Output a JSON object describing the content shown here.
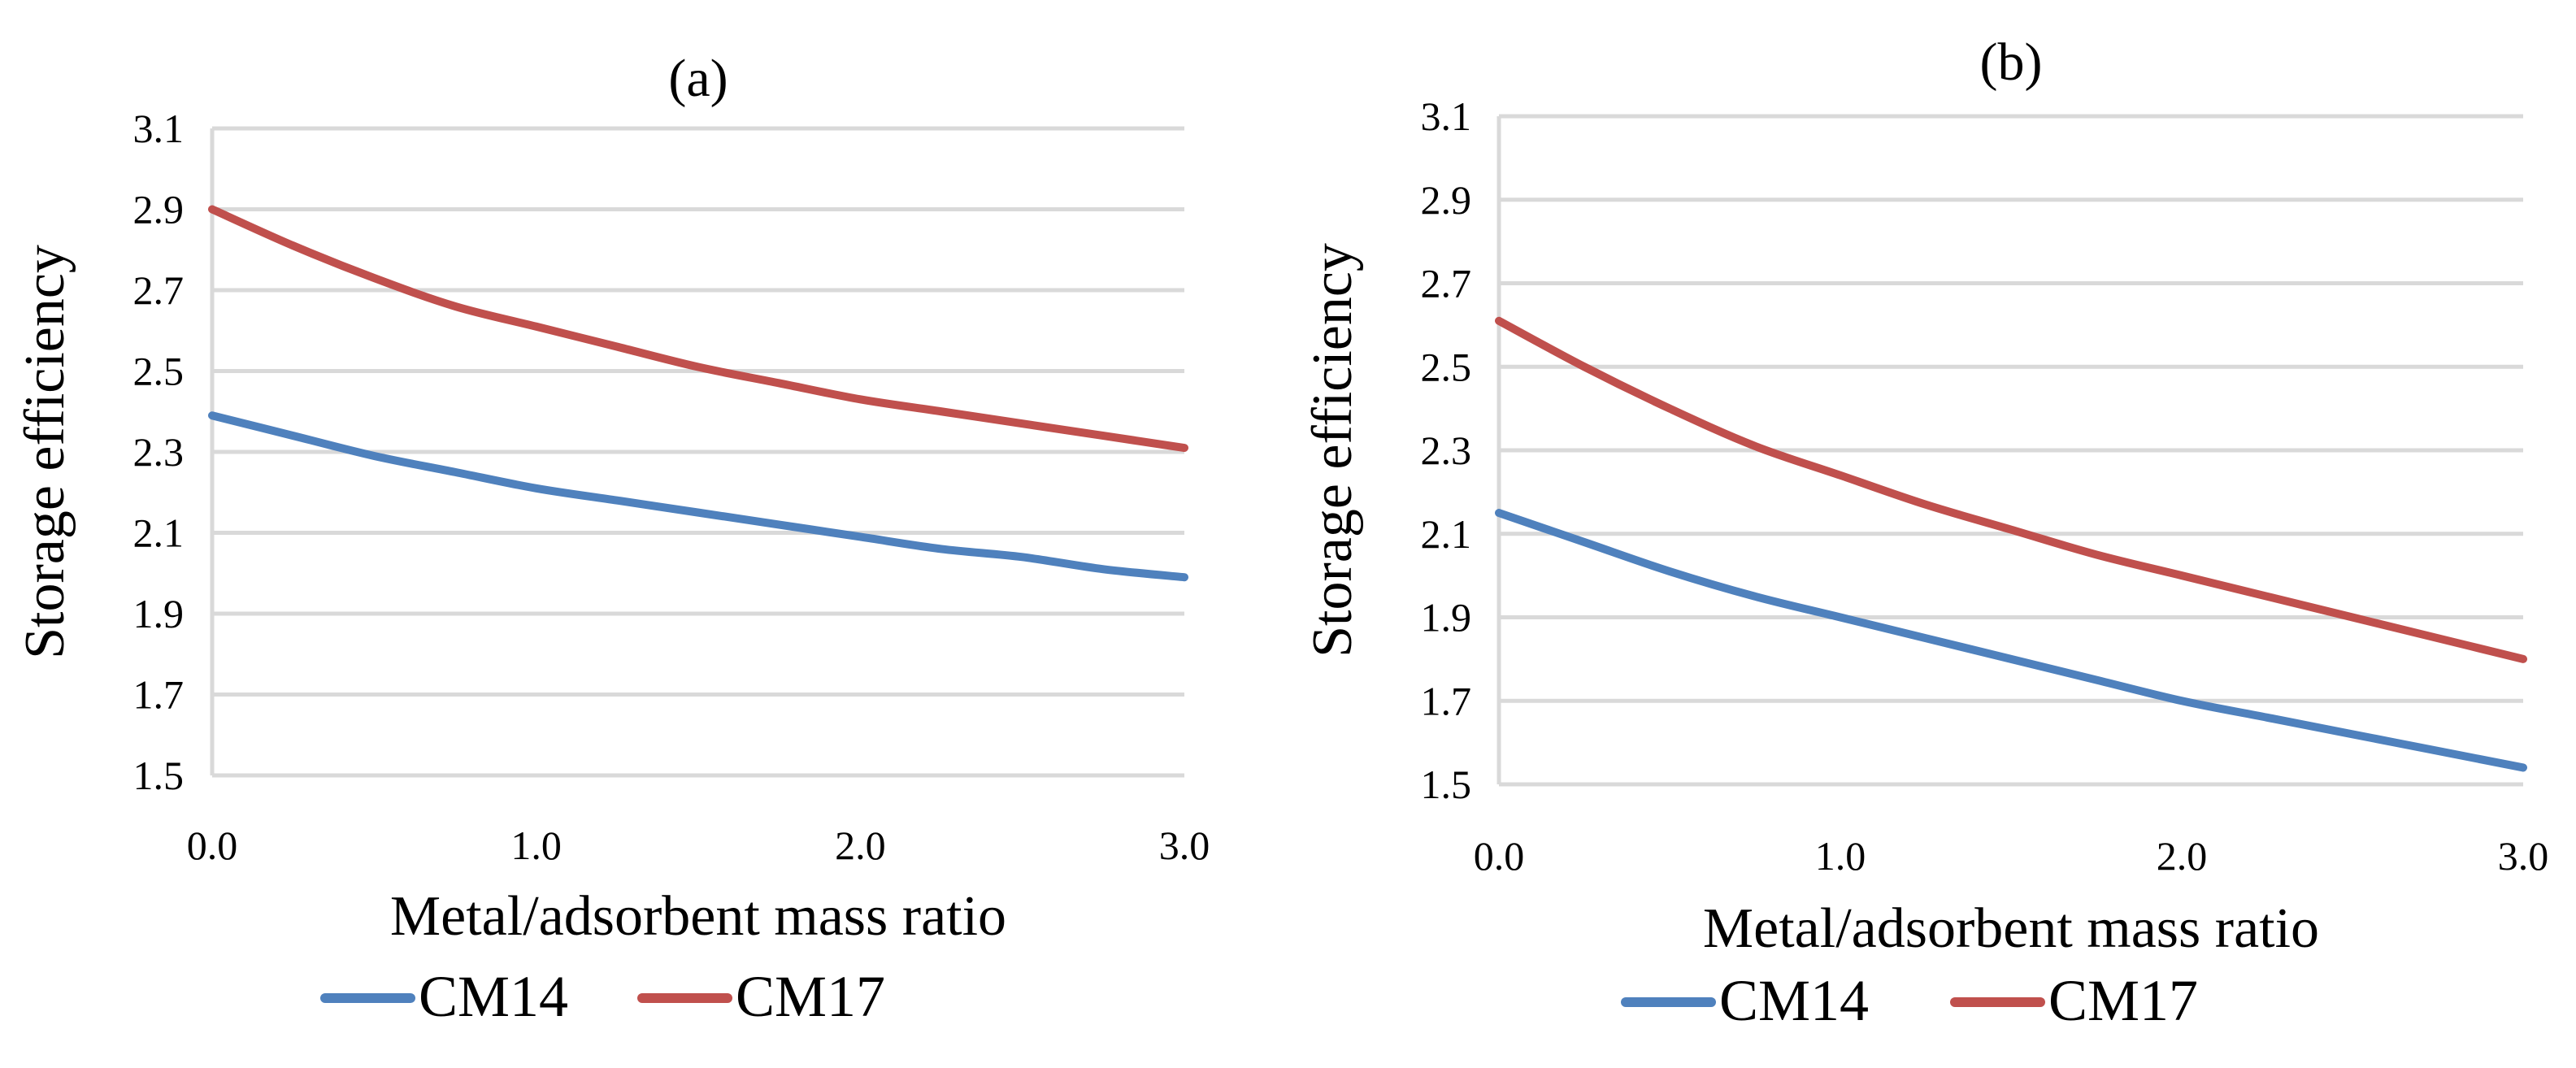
{
  "chart_data": [
    {
      "type": "line",
      "title": "(a)",
      "xlabel": "Metal/adsorbent mass ratio",
      "ylabel": "Storage efficiency",
      "xlim": [
        0,
        3
      ],
      "ylim": [
        1.5,
        3.1
      ],
      "xticks": [
        0,
        1,
        2,
        3
      ],
      "xtick_labels": [
        "0.0",
        "1.0",
        "2.0",
        "3.0"
      ],
      "yticks": [
        1.5,
        1.7,
        1.9,
        2.1,
        2.3,
        2.5,
        2.7,
        2.9,
        3.1
      ],
      "ytick_labels": [
        "1.5",
        "1.7",
        "1.9",
        "2.1",
        "2.3",
        "2.5",
        "2.7",
        "2.9",
        "3.1"
      ],
      "grid": true,
      "legend_position": "bottom",
      "series": [
        {
          "name": "CM14",
          "color": "#4f81bd",
          "x": [
            0,
            0.25,
            0.5,
            0.75,
            1.0,
            1.25,
            1.5,
            1.75,
            2.0,
            2.25,
            2.5,
            2.75,
            3.0
          ],
          "y": [
            2.39,
            2.34,
            2.29,
            2.25,
            2.21,
            2.18,
            2.15,
            2.12,
            2.09,
            2.06,
            2.04,
            2.01,
            1.99
          ]
        },
        {
          "name": "CM17",
          "color": "#c0504d",
          "x": [
            0,
            0.25,
            0.5,
            0.75,
            1.0,
            1.25,
            1.5,
            1.75,
            2.0,
            2.25,
            2.5,
            2.75,
            3.0
          ],
          "y": [
            2.9,
            2.81,
            2.73,
            2.66,
            2.61,
            2.56,
            2.51,
            2.47,
            2.43,
            2.4,
            2.37,
            2.34,
            2.31
          ]
        }
      ]
    },
    {
      "type": "line",
      "title": "(b)",
      "xlabel": "Metal/adsorbent mass ratio",
      "ylabel": "Storage efficiency",
      "xlim": [
        0,
        3
      ],
      "ylim": [
        1.5,
        3.1
      ],
      "xticks": [
        0,
        1,
        2,
        3
      ],
      "xtick_labels": [
        "0.0",
        "1.0",
        "2.0",
        "3.0"
      ],
      "yticks": [
        1.5,
        1.7,
        1.9,
        2.1,
        2.3,
        2.5,
        2.7,
        2.9,
        3.1
      ],
      "ytick_labels": [
        "1.5",
        "1.7",
        "1.9",
        "2.1",
        "2.3",
        "2.5",
        "2.7",
        "2.9",
        "3.1"
      ],
      "grid": true,
      "legend_position": "bottom",
      "series": [
        {
          "name": "CM14",
          "color": "#4f81bd",
          "x": [
            0,
            0.25,
            0.5,
            0.75,
            1.0,
            1.25,
            1.5,
            1.75,
            2.0,
            2.25,
            2.5,
            2.75,
            3.0
          ],
          "y": [
            2.15,
            2.08,
            2.01,
            1.95,
            1.9,
            1.85,
            1.8,
            1.75,
            1.7,
            1.66,
            1.62,
            1.58,
            1.54
          ]
        },
        {
          "name": "CM17",
          "color": "#c0504d",
          "x": [
            0,
            0.25,
            0.5,
            0.75,
            1.0,
            1.25,
            1.5,
            1.75,
            2.0,
            2.25,
            2.5,
            2.75,
            3.0
          ],
          "y": [
            2.61,
            2.5,
            2.4,
            2.31,
            2.24,
            2.17,
            2.11,
            2.05,
            2.0,
            1.95,
            1.9,
            1.85,
            1.8
          ]
        }
      ]
    }
  ]
}
